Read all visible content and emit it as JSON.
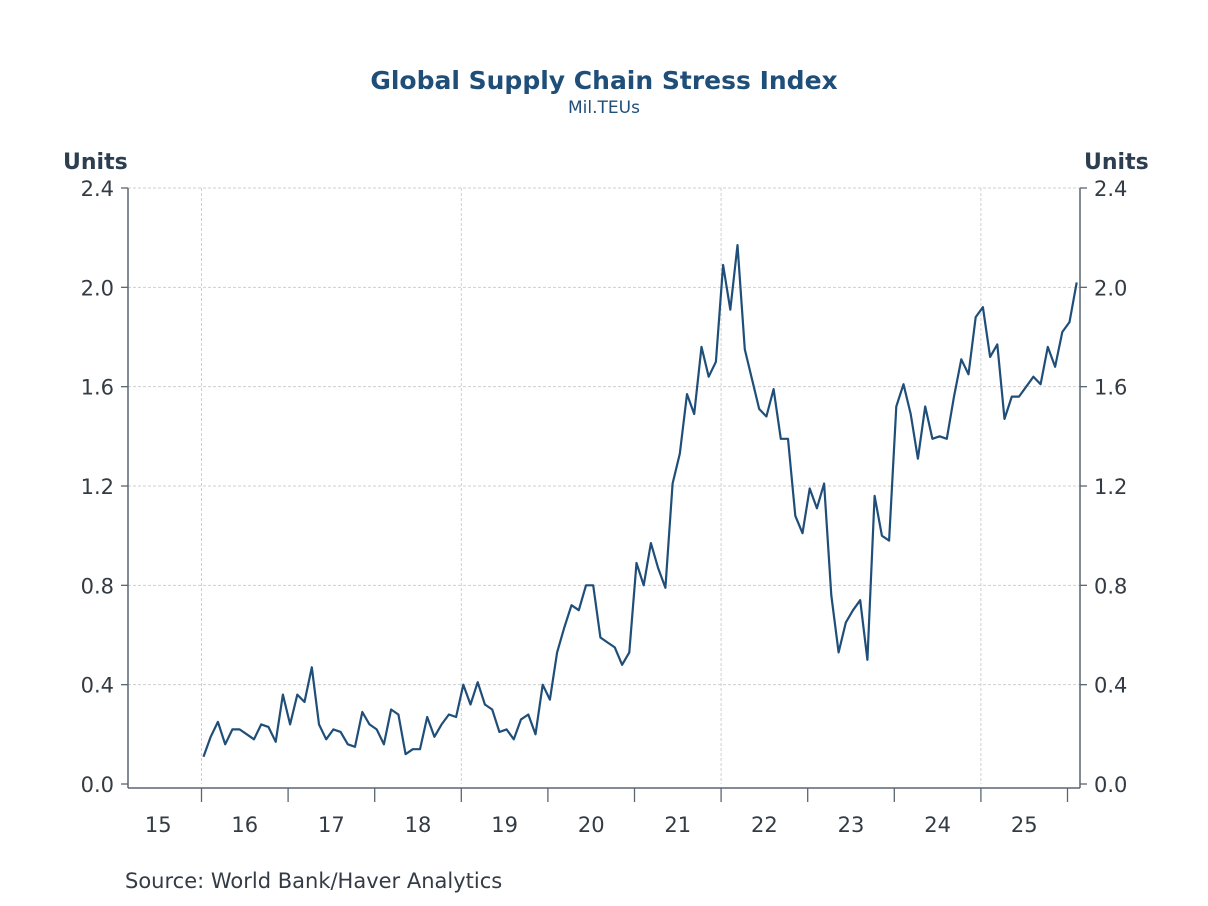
{
  "chart_data": {
    "type": "line",
    "title": "Global Supply Chain Stress Index",
    "subtitle": "Mil.TEUs",
    "ylabel_left": "Units",
    "ylabel_right": "Units",
    "xlabel": "",
    "source": "Source:  World Bank/Haver Analytics",
    "ylim": [
      0.0,
      2.4
    ],
    "yticks": [
      "0.0",
      "0.4",
      "0.8",
      "1.2",
      "1.6",
      "2.0",
      "2.4"
    ],
    "ytick_values": [
      0.0,
      0.4,
      0.8,
      1.2,
      1.6,
      2.0,
      2.4
    ],
    "xlim_years": [
      2015,
      2026
    ],
    "xtick_labels": [
      "15",
      "16",
      "17",
      "18",
      "19",
      "20",
      "21",
      "22",
      "23",
      "24",
      "25"
    ],
    "grid": true,
    "legend": "none",
    "series_color": "#1f4e79",
    "series": [
      {
        "name": "Global Supply Chain Stress Index",
        "start": "2016-01",
        "frequency": "monthly",
        "values": [
          0.11,
          0.19,
          0.25,
          0.16,
          0.22,
          0.22,
          0.2,
          0.18,
          0.24,
          0.23,
          0.17,
          0.36,
          0.24,
          0.36,
          0.33,
          0.47,
          0.24,
          0.18,
          0.22,
          0.21,
          0.16,
          0.15,
          0.29,
          0.24,
          0.22,
          0.16,
          0.3,
          0.28,
          0.12,
          0.14,
          0.14,
          0.27,
          0.19,
          0.24,
          0.28,
          0.27,
          0.4,
          0.32,
          0.41,
          0.32,
          0.3,
          0.21,
          0.22,
          0.18,
          0.26,
          0.28,
          0.2,
          0.4,
          0.34,
          0.53,
          0.63,
          0.72,
          0.7,
          0.8,
          0.8,
          0.59,
          0.57,
          0.55,
          0.48,
          0.53,
          0.89,
          0.8,
          0.97,
          0.87,
          0.79,
          1.21,
          1.33,
          1.57,
          1.49,
          1.76,
          1.64,
          1.7,
          2.09,
          1.91,
          2.17,
          1.75,
          1.63,
          1.51,
          1.48,
          1.59,
          1.39,
          1.39,
          1.08,
          1.01,
          1.19,
          1.11,
          1.21,
          0.76,
          0.53,
          0.65,
          0.7,
          0.74,
          0.5,
          1.16,
          1.0,
          0.98,
          1.52,
          1.61,
          1.49,
          1.31,
          1.52,
          1.39,
          1.4,
          1.39,
          1.56,
          1.71,
          1.65,
          1.88,
          1.92,
          1.72,
          1.77,
          1.47,
          1.56,
          1.56,
          1.6,
          1.64,
          1.61,
          1.76,
          1.68,
          1.82,
          1.86,
          2.02
        ]
      }
    ]
  }
}
